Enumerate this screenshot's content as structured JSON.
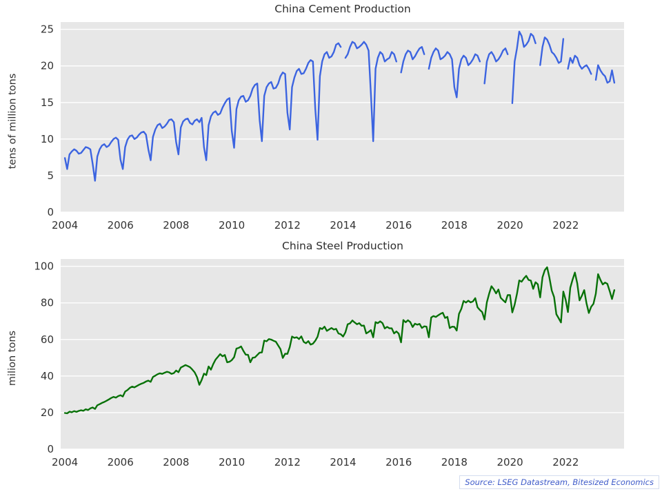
{
  "source_note": "Source: LSEG Datastream, Bitesized Economics",
  "theme": {
    "plot_bg": "#e7e7e7",
    "grid": "#ffffff",
    "tick_color": "#333333",
    "title_color": "#2d2d2d",
    "source_color": "#3f5bc9"
  },
  "chart_data": [
    {
      "type": "line",
      "title": "China Cement Production",
      "xlabel": "",
      "ylabel": "tens of million tons",
      "color": "#3c64e0",
      "legend": "none",
      "grid": "horizontal",
      "xlim": [
        2003.85,
        2024.1
      ],
      "ylim": [
        0,
        26
      ],
      "yticks": [
        0,
        5,
        10,
        15,
        20,
        25
      ],
      "xticks": [
        2004,
        2006,
        2008,
        2010,
        2012,
        2014,
        2016,
        2018,
        2020,
        2022
      ],
      "x_start": 2004,
      "x_frequency": "monthly",
      "values": [
        7.4,
        5.9,
        7.9,
        8.3,
        8.6,
        8.4,
        8.0,
        8.1,
        8.5,
        8.9,
        8.8,
        8.6,
        6.6,
        4.3,
        7.6,
        8.6,
        9.1,
        9.3,
        8.9,
        9.1,
        9.6,
        10.0,
        10.2,
        9.9,
        7.2,
        5.9,
        8.9,
        9.9,
        10.4,
        10.5,
        10.0,
        10.2,
        10.6,
        10.9,
        11.0,
        10.6,
        8.6,
        7.1,
        10.3,
        11.3,
        11.9,
        12.1,
        11.5,
        11.7,
        12.1,
        12.6,
        12.7,
        12.3,
        9.6,
        7.9,
        11.6,
        12.4,
        12.7,
        12.8,
        12.2,
        12.0,
        12.5,
        12.7,
        12.3,
        12.9,
        8.9,
        7.1,
        11.9,
        13.1,
        13.6,
        13.8,
        13.3,
        13.5,
        14.3,
        14.9,
        15.4,
        15.6,
        11.1,
        8.8,
        14.1,
        15.3,
        15.8,
        15.9,
        15.1,
        15.3,
        15.9,
        16.9,
        17.4,
        17.6,
        12.6,
        9.7,
        15.9,
        17.1,
        17.6,
        17.8,
        16.9,
        17.0,
        17.6,
        18.6,
        19.1,
        18.9,
        13.6,
        11.3,
        17.1,
        18.4,
        19.3,
        19.6,
        18.9,
        19.0,
        19.6,
        20.4,
        20.8,
        20.6,
        14.1,
        9.9,
        18.6,
        20.6,
        21.6,
        21.9,
        21.1,
        21.3,
        21.9,
        22.9,
        23.1,
        22.6,
        null,
        21.1,
        21.6,
        22.6,
        23.3,
        23.1,
        22.4,
        22.6,
        22.9,
        23.3,
        22.9,
        22.1,
        16.1,
        9.7,
        19.6,
        21.1,
        21.9,
        21.6,
        20.6,
        20.9,
        21.1,
        21.9,
        21.6,
        20.6,
        null,
        19.1,
        20.6,
        21.6,
        22.1,
        21.9,
        20.9,
        21.3,
        21.9,
        22.4,
        22.6,
        21.6,
        null,
        19.6,
        21.1,
        21.9,
        22.4,
        22.1,
        20.9,
        21.1,
        21.4,
        21.9,
        21.6,
        20.9,
        17.1,
        15.7,
        19.6,
        20.9,
        21.4,
        21.1,
        20.1,
        20.4,
        20.9,
        21.6,
        21.4,
        20.6,
        null,
        17.6,
        20.6,
        21.6,
        21.9,
        21.4,
        20.6,
        20.9,
        21.4,
        22.1,
        22.4,
        21.6,
        null,
        14.9,
        20.6,
        22.4,
        24.7,
        24.1,
        22.6,
        22.9,
        23.4,
        24.4,
        24.1,
        23.1,
        null,
        20.1,
        22.6,
        23.9,
        23.6,
        22.9,
        21.9,
        21.6,
        21.1,
        20.4,
        20.6,
        23.7,
        null,
        19.6,
        21.1,
        20.4,
        21.4,
        21.1,
        20.1,
        19.6,
        19.9,
        20.1,
        19.6,
        18.9,
        null,
        18.1,
        20.1,
        19.4,
        18.9,
        18.6,
        17.7,
        17.9,
        19.4,
        17.7
      ]
    },
    {
      "type": "line",
      "title": "China Steel Production",
      "xlabel": "",
      "ylabel": "milion tons",
      "color": "#087108",
      "legend": "none",
      "grid": "horizontal",
      "xlim": [
        2003.85,
        2024.1
      ],
      "ylim": [
        0,
        104
      ],
      "yticks": [
        0,
        20,
        40,
        60,
        80,
        100
      ],
      "xticks": [
        2004,
        2006,
        2008,
        2010,
        2012,
        2014,
        2016,
        2018,
        2020,
        2022
      ],
      "x_start": 2004,
      "x_frequency": "monthly",
      "values": [
        19.8,
        19.6,
        20.5,
        20.2,
        20.8,
        20.4,
        20.9,
        21.3,
        21.0,
        21.8,
        21.4,
        22.3,
        22.8,
        22.0,
        24.0,
        24.6,
        25.3,
        25.8,
        26.5,
        27.2,
        28.0,
        28.6,
        28.2,
        29.0,
        29.5,
        28.8,
        31.5,
        32.3,
        33.5,
        34.2,
        33.8,
        34.5,
        35.2,
        35.8,
        36.3,
        37.0,
        37.5,
        36.8,
        39.5,
        40.2,
        41.0,
        41.5,
        41.2,
        41.8,
        42.3,
        42.0,
        41.2,
        41.6,
        43.0,
        42.1,
        44.6,
        45.3,
        46.0,
        45.5,
        44.8,
        43.5,
        42.0,
        39.4,
        35.2,
        37.8,
        41.3,
        40.5,
        45.2,
        43.5,
        46.5,
        49.0,
        50.5,
        52.0,
        50.8,
        51.5,
        47.5,
        47.8,
        48.7,
        50.3,
        55.0,
        55.4,
        56.2,
        53.8,
        51.7,
        51.6,
        47.5,
        50.0,
        50.2,
        51.5,
        52.8,
        52.9,
        59.4,
        59.0,
        60.2,
        59.9,
        59.3,
        58.8,
        56.7,
        54.7,
        49.9,
        52.2,
        52.1,
        55.9,
        61.6,
        60.9,
        61.2,
        60.2,
        61.7,
        58.7,
        57.9,
        59.1,
        57.2,
        57.7,
        59.3,
        61.5,
        66.3,
        65.7,
        67.0,
        64.7,
        65.5,
        66.3,
        65.4,
        65.8,
        63.3,
        62.9,
        61.6,
        63.9,
        68.3,
        68.8,
        70.4,
        69.3,
        68.3,
        68.9,
        67.5,
        67.6,
        63.3,
        64.1,
        65.1,
        61.2,
        69.5,
        68.9,
        69.9,
        68.9,
        66.0,
        66.9,
        66.1,
        66.1,
        63.3,
        64.4,
        63.2,
        58.4,
        70.6,
        69.4,
        70.5,
        69.5,
        66.8,
        68.6,
        68.1,
        68.5,
        66.3,
        67.2,
        67.0,
        61.2,
        72.0,
        72.8,
        72.3,
        73.2,
        74.0,
        74.6,
        71.8,
        72.4,
        66.2,
        67.0,
        66.9,
        64.9,
        74.0,
        76.7,
        81.1,
        80.2,
        81.2,
        80.3,
        80.8,
        82.6,
        77.6,
        76.1,
        75.0,
        70.9,
        80.3,
        85.0,
        89.1,
        87.5,
        85.2,
        87.3,
        82.8,
        81.5,
        80.3,
        84.3,
        84.3,
        74.8,
        79.0,
        85.0,
        92.3,
        91.6,
        93.4,
        94.8,
        92.6,
        92.2,
        87.7,
        91.3,
        90.2,
        83.0,
        94.0,
        97.9,
        99.5,
        93.9,
        86.8,
        83.2,
        73.8,
        71.6,
        69.3,
        86.2,
        81.7,
        75.0,
        88.3,
        92.8,
        96.6,
        90.7,
        81.4,
        83.9,
        87.0,
        79.8,
        74.5,
        77.9,
        79.5,
        85.0,
        95.7,
        92.6,
        90.1,
        91.1,
        90.4,
        86.4,
        82.1,
        87.0
      ]
    }
  ]
}
